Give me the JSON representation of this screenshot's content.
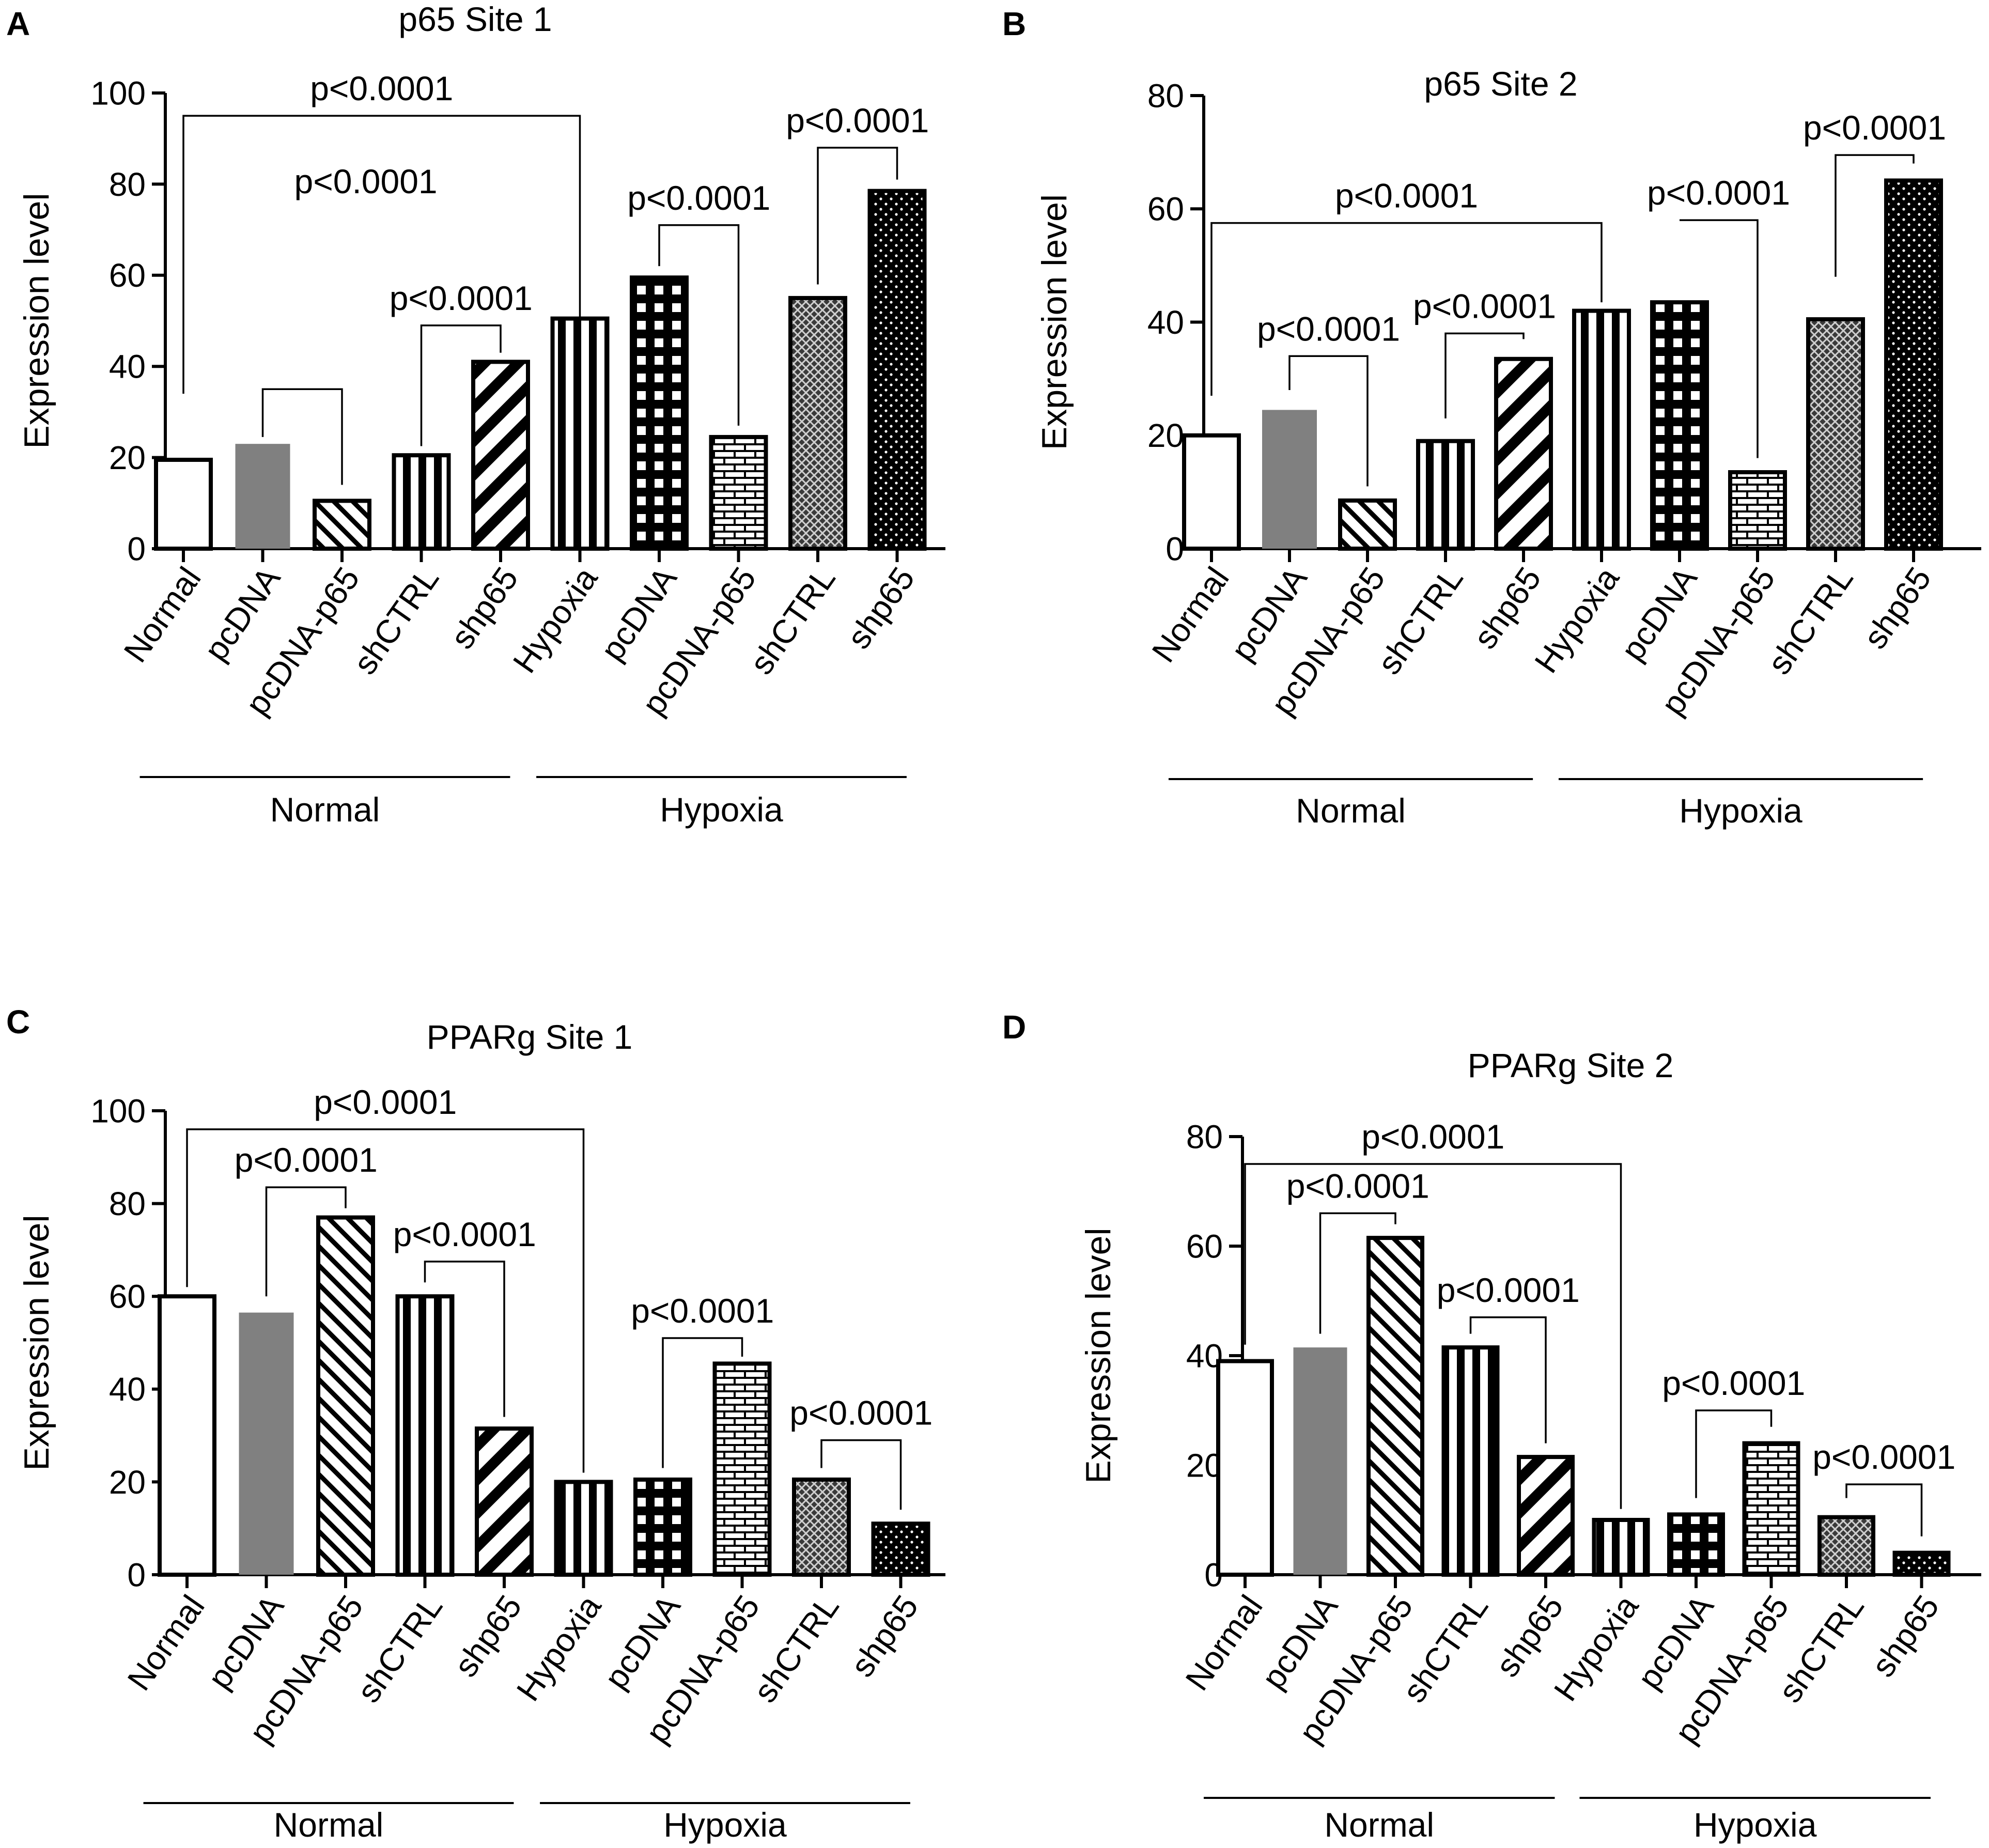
{
  "colors": {
    "ink": "#000000",
    "bar_solid_gray": "#808080",
    "background": "#ffffff"
  },
  "chart_data": [
    {
      "id": "A",
      "type": "bar",
      "title": "p65 Site 1",
      "ylabel": "Expression level",
      "xlabel": "",
      "ylim": [
        0,
        100
      ],
      "yticks": [
        0,
        20,
        40,
        60,
        80,
        100
      ],
      "categories": [
        "Normal",
        "pcDNA",
        "pcDNA-p65",
        "shCTRL",
        "shp65",
        "Hypoxia",
        "pcDNA",
        "pcDNA-p65",
        "shCTRL",
        "shp65"
      ],
      "values": [
        19.5,
        23,
        10.5,
        20.5,
        41,
        50.5,
        59.5,
        24.5,
        55,
        78.5
      ],
      "fills": [
        "white",
        "gray",
        "diag",
        "vert",
        "wdiag",
        "vert",
        "grid",
        "brick",
        "cross",
        "dots"
      ],
      "groups": [
        {
          "label": "Normal",
          "from": 0,
          "to": 4
        },
        {
          "label": "Hypoxia",
          "from": 5,
          "to": 9
        }
      ],
      "comparisons": [
        {
          "from": 0,
          "to": 5,
          "y1": 34,
          "y2": 48,
          "level": 95,
          "label": "p<0.0001"
        },
        {
          "from": 1,
          "to": 2,
          "y1": 24.5,
          "y2": 14,
          "level": 35,
          "label": "p<0.0001",
          "label_level": 78,
          "label_x": 2.3
        },
        {
          "from": 3,
          "to": 4,
          "y1": 22.5,
          "y2": 43,
          "level": 49,
          "label": "p<0.0001"
        },
        {
          "from": 6,
          "to": 7,
          "y1": 62,
          "y2": 27,
          "level": 71,
          "label": "p<0.0001"
        },
        {
          "from": 8,
          "to": 9,
          "y1": 58,
          "y2": 81,
          "level": 88,
          "label": "p<0.0001"
        }
      ]
    },
    {
      "id": "B",
      "type": "bar",
      "title": "p65 Site 2",
      "ylabel": "Expression level",
      "xlabel": "",
      "ylim": [
        0,
        80
      ],
      "yticks": [
        0,
        20,
        40,
        60,
        80
      ],
      "categories": [
        "Normal",
        "pcDNA",
        "pcDNA-p65",
        "shCTRL",
        "shp65",
        "Hypoxia",
        "pcDNA",
        "pcDNA-p65",
        "shCTRL",
        "shp65"
      ],
      "values": [
        20,
        24.5,
        8.5,
        19,
        33.5,
        42,
        43.5,
        13.5,
        40.5,
        65
      ],
      "fills": [
        "white",
        "gray",
        "diag",
        "vert",
        "wdiag",
        "vert",
        "grid",
        "brick",
        "cross",
        "dots"
      ],
      "groups": [
        {
          "label": "Normal",
          "from": 0,
          "to": 4
        },
        {
          "label": "Hypoxia",
          "from": 5,
          "to": 9
        }
      ],
      "comparisons": [
        {
          "from": 0,
          "to": 5,
          "y1": 27,
          "y2": 43.5,
          "level": 57.5,
          "label": "p<0.0001"
        },
        {
          "from": 1,
          "to": 2,
          "y1": 28,
          "y2": 11,
          "level": 34,
          "label": "p<0.0001"
        },
        {
          "from": 3,
          "to": 4,
          "y1": 23,
          "y2": 37,
          "level": 38,
          "label": "p<0.0001"
        },
        {
          "from": 6,
          "to": 7,
          "y1": 58,
          "y2": 16,
          "level": 58,
          "label": "p<0.0001"
        },
        {
          "from": 8,
          "to": 9,
          "y1": 48,
          "y2": 68,
          "level": 69.5,
          "label": "p<0.0001"
        }
      ]
    },
    {
      "id": "C",
      "type": "bar",
      "title": "PPARg Site 1",
      "ylabel": "Expression level",
      "xlabel": "",
      "ylim": [
        0,
        100
      ],
      "yticks": [
        0,
        20,
        40,
        60,
        80,
        100
      ],
      "categories": [
        "Normal",
        "pcDNA",
        "pcDNA-p65",
        "shCTRL",
        "shp65",
        "Hypoxia",
        "pcDNA",
        "pcDNA-p65",
        "shCTRL",
        "shp65"
      ],
      "values": [
        60,
        56.5,
        77,
        60,
        31.5,
        20,
        20.5,
        45.5,
        20.5,
        11
      ],
      "fills": [
        "white",
        "gray",
        "diag",
        "vert",
        "wdiag",
        "vert",
        "grid",
        "brick",
        "cross",
        "dots"
      ],
      "groups": [
        {
          "label": "Normal",
          "from": 0,
          "to": 4
        },
        {
          "label": "Hypoxia",
          "from": 5,
          "to": 9
        }
      ],
      "comparisons": [
        {
          "from": 0,
          "to": 5,
          "y1": 62,
          "y2": 22,
          "level": 96,
          "label": "p<0.0001"
        },
        {
          "from": 1,
          "to": 2,
          "y1": 60,
          "y2": 79,
          "level": 83.5,
          "label": "p<0.0001"
        },
        {
          "from": 3,
          "to": 4,
          "y1": 63,
          "y2": 34,
          "level": 67.5,
          "label": "p<0.0001"
        },
        {
          "from": 6,
          "to": 7,
          "y1": 23,
          "y2": 47,
          "level": 51,
          "label": "p<0.0001"
        },
        {
          "from": 8,
          "to": 9,
          "y1": 23,
          "y2": 14,
          "level": 29,
          "label": "p<0.0001"
        }
      ]
    },
    {
      "id": "D",
      "type": "bar",
      "title": "PPARg Site 2",
      "ylabel": "Expression level",
      "xlabel": "",
      "ylim": [
        0,
        80
      ],
      "yticks": [
        0,
        20,
        40,
        60,
        80
      ],
      "categories": [
        "Normal",
        "pcDNA",
        "pcDNA-p65",
        "shCTRL",
        "shp65",
        "Hypoxia",
        "pcDNA",
        "pcDNA-p65",
        "shCTRL",
        "shp65"
      ],
      "values": [
        39,
        41.5,
        61.5,
        41.5,
        21.5,
        10,
        11,
        24,
        10.5,
        4
      ],
      "fills": [
        "white",
        "gray",
        "diag",
        "vert",
        "wdiag",
        "vert",
        "grid",
        "brick",
        "cross",
        "dots"
      ],
      "groups": [
        {
          "label": "Normal",
          "from": 0,
          "to": 4
        },
        {
          "label": "Hypoxia",
          "from": 5,
          "to": 9
        }
      ],
      "comparisons": [
        {
          "from": 0,
          "to": 5,
          "y1": 42,
          "y2": 12,
          "level": 75,
          "label": "p<0.0001"
        },
        {
          "from": 1,
          "to": 2,
          "y1": 44,
          "y2": 64,
          "level": 66,
          "label": "p<0.0001"
        },
        {
          "from": 3,
          "to": 4,
          "y1": 44,
          "y2": 24,
          "level": 47,
          "label": "p<0.0001"
        },
        {
          "from": 6,
          "to": 7,
          "y1": 14,
          "y2": 27,
          "level": 30,
          "label": "p<0.0001"
        },
        {
          "from": 8,
          "to": 9,
          "y1": 14,
          "y2": 7,
          "level": 16.5,
          "label": "p<0.0001"
        }
      ]
    }
  ]
}
